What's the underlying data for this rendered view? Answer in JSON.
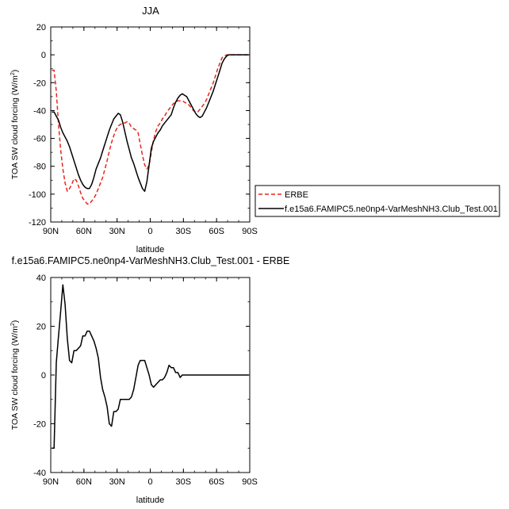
{
  "chart_data": [
    {
      "type": "line",
      "title": "JJA",
      "xlabel": "latitude",
      "ylabel": "TOA SW cloud forcing (W/m",
      "ylabel_sup": "2",
      "ylabel_close": ")",
      "xlim": [
        90,
        -90
      ],
      "ylim": [
        -120,
        20
      ],
      "xticks": [
        90,
        60,
        30,
        0,
        -30,
        -60,
        -90
      ],
      "xtick_labels": [
        "90N",
        "60N",
        "30N",
        "0",
        "30S",
        "60S",
        "90S"
      ],
      "yticks": [
        20,
        0,
        -20,
        -40,
        -60,
        -80,
        -100,
        -120
      ],
      "ytick_labels": [
        "20",
        "0",
        "-20",
        "-40",
        "-60",
        "-80",
        "-100",
        "-120"
      ],
      "legend_position": "right",
      "series": [
        {
          "name": "ERBE",
          "color": "#e8261c",
          "style": "dashed",
          "x": [
            89,
            87,
            85,
            83,
            81,
            79,
            77,
            75,
            73,
            71,
            69,
            67,
            65,
            63,
            61,
            59,
            57,
            55,
            53,
            51,
            49,
            47,
            45,
            43,
            41,
            39,
            37,
            35,
            33,
            31,
            29,
            27,
            25,
            23,
            21,
            19,
            17,
            15,
            13,
            11,
            9,
            7,
            5,
            3,
            1,
            -1,
            -3,
            -5,
            -7,
            -9,
            -11,
            -13,
            -15,
            -17,
            -19,
            -21,
            -23,
            -25,
            -27,
            -29,
            -31,
            -33,
            -35,
            -37,
            -39,
            -41,
            -43,
            -45,
            -47,
            -49,
            -51,
            -53,
            -55,
            -57,
            -59,
            -61,
            -63,
            -65,
            -67,
            -69,
            -71,
            -73,
            -75,
            -77,
            -79,
            -81,
            -83,
            -85,
            -87,
            -89
          ],
          "y": [
            -11,
            -11,
            -26,
            -50,
            -68,
            -82,
            -92,
            -98,
            -96,
            -93,
            -89,
            -90,
            -94,
            -99,
            -103,
            -105,
            -107,
            -107,
            -105,
            -103,
            -100,
            -96,
            -92,
            -88,
            -82,
            -76,
            -69,
            -63,
            -58,
            -54,
            -51,
            -50,
            -49,
            -49,
            -48,
            -49,
            -52,
            -53,
            -54,
            -56,
            -64,
            -72,
            -79,
            -82,
            -79,
            -70,
            -61,
            -55,
            -51,
            -49,
            -46,
            -44,
            -41,
            -39,
            -37,
            -35,
            -34,
            -33,
            -33,
            -33,
            -34,
            -35,
            -36,
            -38,
            -40,
            -41,
            -41,
            -39,
            -37,
            -35,
            -32,
            -28,
            -24,
            -20,
            -15,
            -10,
            -6,
            -2,
            -1,
            0,
            0,
            0,
            0,
            0,
            0,
            0,
            0,
            0,
            0,
            0
          ]
        },
        {
          "name": "f.e15a6.FAMIPC5.ne0np4-VarMeshNH3.Club_Test.001",
          "color": "#000000",
          "style": "solid",
          "x": [
            89,
            87,
            85,
            83,
            81,
            79,
            77,
            75,
            73,
            71,
            69,
            67,
            65,
            63,
            61,
            59,
            57,
            55,
            53,
            51,
            49,
            47,
            45,
            43,
            41,
            39,
            37,
            35,
            33,
            31,
            29,
            27,
            25,
            23,
            21,
            19,
            17,
            15,
            13,
            11,
            9,
            7,
            5,
            3,
            1,
            -1,
            -3,
            -5,
            -7,
            -9,
            -11,
            -13,
            -15,
            -17,
            -19,
            -21,
            -23,
            -25,
            -27,
            -29,
            -31,
            -33,
            -35,
            -37,
            -39,
            -41,
            -43,
            -45,
            -47,
            -49,
            -51,
            -53,
            -55,
            -57,
            -59,
            -61,
            -63,
            -65,
            -67,
            -69,
            -71,
            -73,
            -75,
            -77,
            -79,
            -81,
            -83,
            -85,
            -87,
            -89
          ],
          "y": [
            -41,
            -41,
            -44,
            -47,
            -52,
            -56,
            -59,
            -62,
            -66,
            -71,
            -76,
            -81,
            -86,
            -90,
            -93,
            -95,
            -96,
            -96,
            -93,
            -88,
            -82,
            -78,
            -74,
            -69,
            -64,
            -59,
            -54,
            -50,
            -46,
            -44,
            -42,
            -43,
            -48,
            -55,
            -62,
            -68,
            -74,
            -78,
            -83,
            -88,
            -92,
            -96,
            -98,
            -91,
            -79,
            -67,
            -62,
            -59,
            -56,
            -54,
            -51,
            -49,
            -47,
            -45,
            -43,
            -38,
            -34,
            -31,
            -29,
            -28,
            -29,
            -30,
            -33,
            -36,
            -39,
            -42,
            -44,
            -45,
            -44,
            -41,
            -38,
            -34,
            -30,
            -26,
            -21,
            -16,
            -11,
            -6,
            -3,
            -1,
            0,
            0,
            0,
            0,
            0,
            0,
            0,
            0,
            0,
            0
          ]
        }
      ]
    },
    {
      "type": "line",
      "title": "f.e15a6.FAMIPC5.ne0np4-VarMeshNH3.Club_Test.001 - ERBE",
      "xlabel": "latitude",
      "ylabel": "TOA SW cloud forcing (W/m",
      "ylabel_sup": "2",
      "ylabel_close": ")",
      "xlim": [
        90,
        -90
      ],
      "ylim": [
        -40,
        40
      ],
      "xticks": [
        90,
        60,
        30,
        0,
        -30,
        -60,
        -90
      ],
      "xtick_labels": [
        "90N",
        "60N",
        "30N",
        "0",
        "30S",
        "60S",
        "90S"
      ],
      "yticks": [
        40,
        20,
        0,
        -20,
        -40
      ],
      "ytick_labels": [
        "40",
        "20",
        "0",
        "-20",
        "-40"
      ],
      "series": [
        {
          "color": "#000000",
          "style": "solid",
          "x": [
            89,
            87,
            85,
            83,
            81,
            79,
            77,
            75,
            73,
            71,
            69,
            67,
            65,
            63,
            61,
            59,
            57,
            55,
            53,
            51,
            49,
            47,
            45,
            43,
            41,
            39,
            37,
            35,
            33,
            31,
            29,
            27,
            25,
            23,
            21,
            19,
            17,
            15,
            13,
            11,
            9,
            7,
            5,
            3,
            1,
            -1,
            -3,
            -5,
            -7,
            -9,
            -11,
            -13,
            -15,
            -17,
            -19,
            -21,
            -23,
            -25,
            -27,
            -29,
            -31,
            -33,
            -35,
            -37,
            -39,
            -41,
            -43,
            -45,
            -47,
            -49,
            -51,
            -53,
            -55,
            -57,
            -59,
            -61,
            -63,
            -65,
            -67,
            -69,
            -71,
            -73,
            -75,
            -77,
            -79,
            -81,
            -83,
            -85,
            -87,
            -89
          ],
          "y": [
            -30,
            -30,
            5,
            16,
            26,
            37,
            29,
            15,
            6,
            5,
            10,
            10,
            11,
            12,
            16,
            16,
            18,
            18,
            16,
            14,
            11,
            7,
            -1,
            -6,
            -9,
            -13,
            -20,
            -21,
            -15,
            -15,
            -14,
            -10,
            -10,
            -10,
            -10,
            -10,
            -9,
            -6,
            -1,
            4,
            6,
            6,
            6,
            3,
            0,
            -4,
            -5,
            -4,
            -3,
            -2,
            -2,
            -1,
            1,
            4,
            3,
            3,
            1,
            1,
            -1,
            0,
            0,
            0,
            0,
            0,
            0,
            0,
            0,
            0,
            0,
            0,
            0,
            0,
            0,
            0,
            0,
            0,
            0,
            0,
            0,
            0,
            0,
            0,
            0,
            0,
            0,
            0,
            0,
            0,
            0,
            0
          ]
        }
      ]
    }
  ]
}
